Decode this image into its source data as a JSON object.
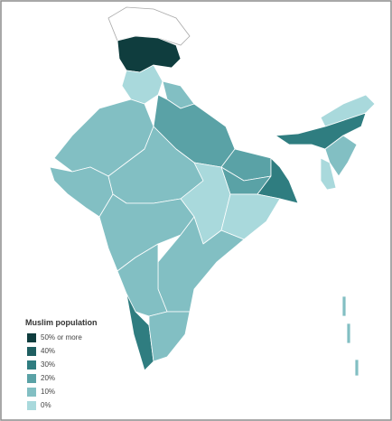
{
  "legend": {
    "title": "Muslim population",
    "items": [
      {
        "label": "50% or more",
        "color": "#0f3d3e"
      },
      {
        "label": "40%",
        "color": "#1f5f61"
      },
      {
        "label": "30%",
        "color": "#2f7d80"
      },
      {
        "label": "20%",
        "color": "#5aa2a6"
      },
      {
        "label": "10%",
        "color": "#82bfc3"
      },
      {
        "label": "0%",
        "color": "#a9d9dc"
      }
    ]
  }
}
